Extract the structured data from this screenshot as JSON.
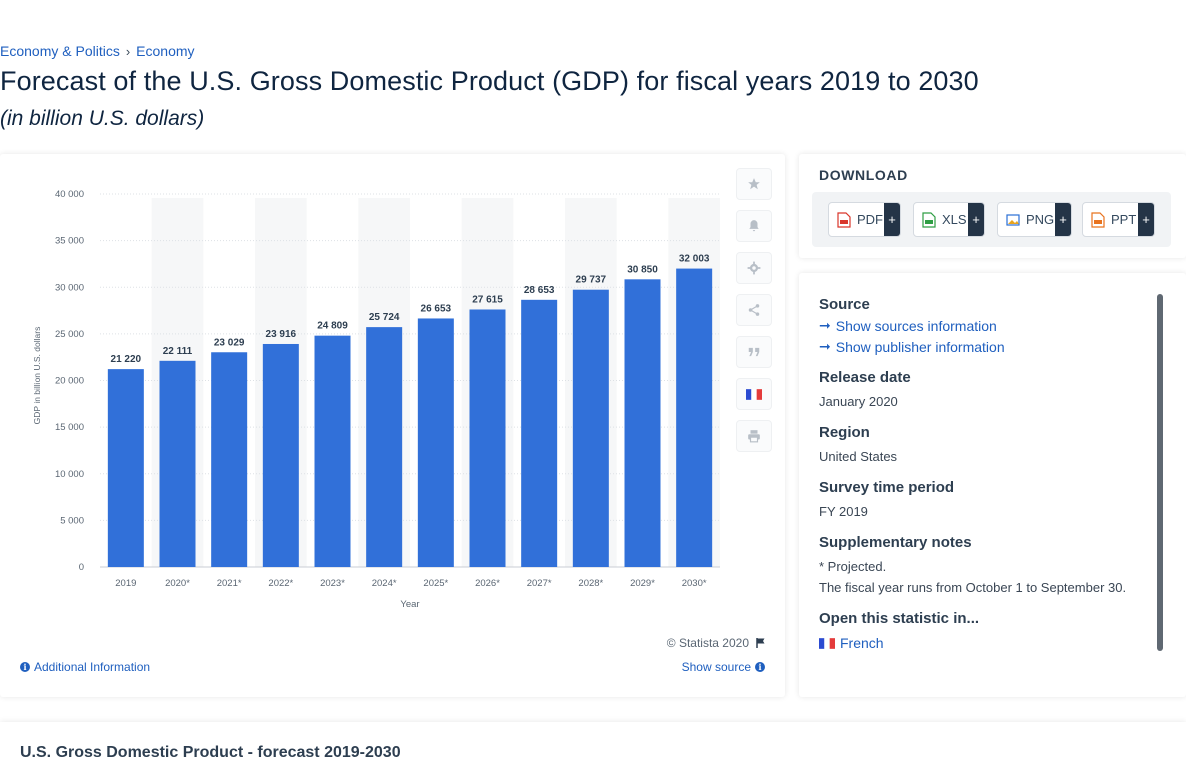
{
  "breadcrumb": {
    "items": [
      "Economy & Politics",
      "Economy"
    ],
    "separator": "›"
  },
  "title": "Forecast of the U.S. Gross Domestic Product (GDP) for fiscal years 2019 to 2030",
  "subtitle": "(in billion U.S. dollars)",
  "chart_data": {
    "type": "bar",
    "categories": [
      "2019",
      "2020*",
      "2021*",
      "2022*",
      "2023*",
      "2024*",
      "2025*",
      "2026*",
      "2027*",
      "2028*",
      "2029*",
      "2030*"
    ],
    "values": [
      21220,
      22111,
      23029,
      23916,
      24809,
      25724,
      26653,
      27615,
      28653,
      29737,
      30850,
      32003
    ],
    "value_labels": [
      "21 220",
      "22 111",
      "23 029",
      "23 916",
      "24 809",
      "25 724",
      "26 653",
      "27 615",
      "28 653",
      "29 737",
      "30 850",
      "32 003"
    ],
    "xlabel": "Year",
    "ylabel": "GDP in billion U.S. dollars",
    "ylim": [
      0,
      40000
    ],
    "yticks": [
      0,
      5000,
      10000,
      15000,
      20000,
      25000,
      30000,
      35000,
      40000
    ],
    "ytick_labels": [
      "0",
      "5 000",
      "10 000",
      "15 000",
      "20 000",
      "25 000",
      "30 000",
      "35 000",
      "40 000"
    ],
    "grid": true,
    "bar_color": "#3170d9"
  },
  "toolbar": {
    "icons": [
      "star-icon",
      "bell-icon",
      "gear-icon",
      "share-icon",
      "quote-icon",
      "french-flag-icon",
      "print-icon"
    ]
  },
  "chart_footer": {
    "copyright": "© Statista 2020",
    "additional_info": "Additional Information",
    "show_source": "Show source"
  },
  "download": {
    "title": "DOWNLOAD",
    "buttons": [
      {
        "label": "PDF",
        "color": "#d9362b"
      },
      {
        "label": "XLS",
        "color": "#2f9e44"
      },
      {
        "label": "PNG",
        "color": "#2a6fd6"
      },
      {
        "label": "PPT",
        "color": "#e8731f"
      }
    ],
    "plus": "+"
  },
  "details": {
    "source_label": "Source",
    "show_sources": "Show sources information",
    "show_publisher": "Show publisher information",
    "release_date_label": "Release date",
    "release_date": "January 2020",
    "region_label": "Region",
    "region": "United States",
    "survey_period_label": "Survey time period",
    "survey_period": "FY 2019",
    "supplementary_label": "Supplementary notes",
    "note_1": "* Projected.",
    "note_2": "The fiscal year runs from October 1 to September 30.",
    "open_in_label": "Open this statistic in...",
    "open_in_language": "French"
  },
  "bottom": {
    "title": "U.S. Gross Domestic Product - forecast 2019-2030"
  }
}
